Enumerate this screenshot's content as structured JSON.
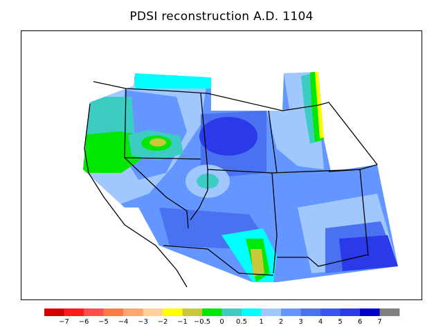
{
  "title": "PDSI reconstruction A.D. 1104",
  "legend": {
    "colors": [
      "#d40000",
      "#ff1a1a",
      "#ff4d4d",
      "#ff7a45",
      "#ffa66e",
      "#ffd09a",
      "#ffff00",
      "#c8c83a",
      "#00e800",
      "#3cccc4",
      "#00ffff",
      "#a0c8ff",
      "#6496ff",
      "#4a72f0",
      "#3a56f0",
      "#2a3ae8",
      "#0000c8",
      "#808080"
    ],
    "labels": [
      "−7",
      "−6",
      "−5",
      "−4",
      "−3",
      "−2",
      "−1",
      "−0.5",
      "0",
      "0.5",
      "1",
      "2",
      "3",
      "4",
      "5",
      "6",
      "7"
    ]
  },
  "map": {
    "region": "Western United States",
    "variable": "PDSI",
    "year": "A.D. 1104"
  }
}
